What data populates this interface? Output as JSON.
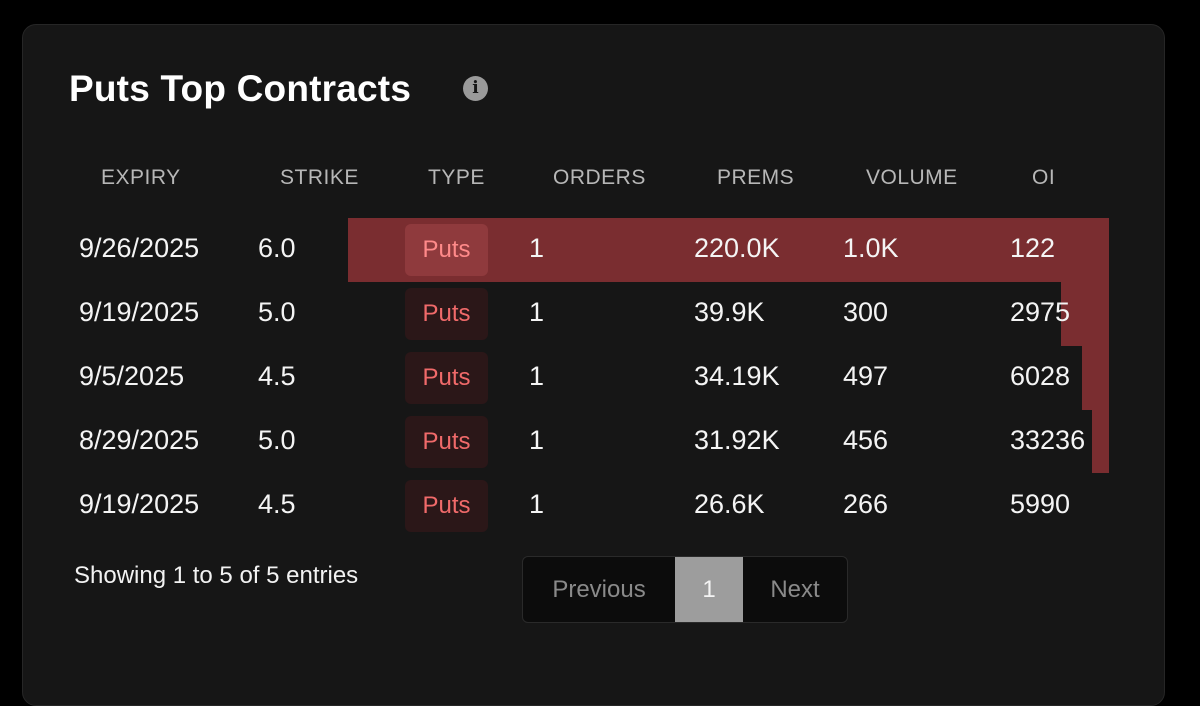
{
  "panel": {
    "title": "Puts Top Contracts",
    "info_icon_glyph": "i"
  },
  "table": {
    "columns": [
      "EXPIRY",
      "STRIKE",
      "TYPE",
      "ORDERS",
      "PREMS",
      "VOLUME",
      "OI"
    ],
    "rows": [
      {
        "expiry": "9/26/2025",
        "strike": "6.0",
        "type": "Puts",
        "orders": "1",
        "prems": "220.0K",
        "volume": "1.0K",
        "oi": "122"
      },
      {
        "expiry": "9/19/2025",
        "strike": "5.0",
        "type": "Puts",
        "orders": "1",
        "prems": "39.9K",
        "volume": "300",
        "oi": "2975"
      },
      {
        "expiry": "9/5/2025",
        "strike": "4.5",
        "type": "Puts",
        "orders": "1",
        "prems": "34.19K",
        "volume": "497",
        "oi": "6028"
      },
      {
        "expiry": "8/29/2025",
        "strike": "5.0",
        "type": "Puts",
        "orders": "1",
        "prems": "31.92K",
        "volume": "456",
        "oi": "33236"
      },
      {
        "expiry": "9/19/2025",
        "strike": "4.5",
        "type": "Puts",
        "orders": "1",
        "prems": "26.6K",
        "volume": "266",
        "oi": "5990"
      }
    ]
  },
  "footer": {
    "entries_text": "Showing 1 to 5 of 5 entries",
    "previous_label": "Previous",
    "current_page": "1",
    "next_label": "Next"
  },
  "colors": {
    "bar": "#7a2d30",
    "puts_text": "#f06a6a",
    "card_bg": "#161616"
  }
}
